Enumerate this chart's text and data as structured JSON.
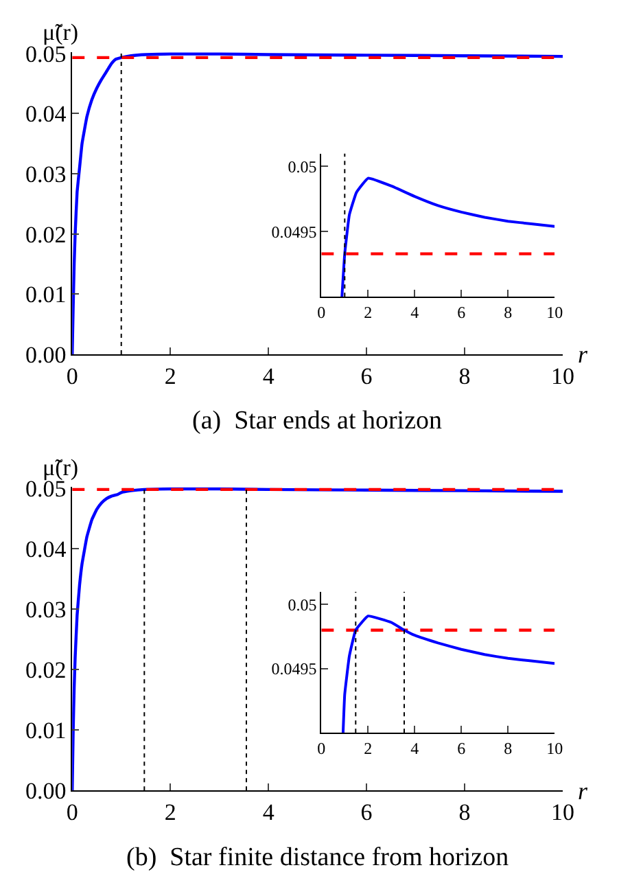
{
  "chart_data": [
    {
      "type": "line",
      "title": "(a)  Star ends at horizon",
      "xlabel": "r",
      "ylabel": "μ̃(r)",
      "xlim": [
        0,
        10
      ],
      "ylim": [
        0,
        0.0502
      ],
      "xticks": [
        0,
        2,
        4,
        6,
        8,
        10
      ],
      "yticks": [
        {
          "value": 0,
          "label": "0.00"
        },
        {
          "value": 0.01,
          "label": "0.01"
        },
        {
          "value": 0.02,
          "label": "0.02"
        },
        {
          "value": 0.03,
          "label": "0.03"
        },
        {
          "value": 0.04,
          "label": "0.04"
        },
        {
          "value": 0.05,
          "label": "0.05"
        }
      ],
      "series": [
        {
          "color": "#0000ff",
          "x": [
            0,
            0.02,
            0.04,
            0.06,
            0.1,
            0.15,
            0.2,
            0.3,
            0.4,
            0.5,
            0.6,
            0.7,
            0.8,
            0.88,
            1.0,
            1.2,
            1.5,
            2,
            3,
            4,
            6,
            8,
            10
          ],
          "values": [
            0,
            0.008,
            0.015,
            0.02,
            0.027,
            0.031,
            0.035,
            0.0395,
            0.0423,
            0.0442,
            0.0457,
            0.047,
            0.0483,
            0.049,
            0.0493,
            0.0496,
            0.0498,
            0.0499,
            0.0499,
            0.0498,
            0.0497,
            0.0496,
            0.0495
          ]
        }
      ],
      "ref_lines": [
        {
          "axis": "y",
          "value": 0.0493,
          "color": "#ff0000",
          "line_style": "dashed"
        },
        {
          "axis": "x",
          "value": 1.0,
          "color": "#000000",
          "line_style": "dotted"
        }
      ]
    },
    {
      "type": "line",
      "xlim": [
        0,
        10
      ],
      "ylim": [
        0.049,
        0.0501
      ],
      "xticks": [
        0,
        2,
        4,
        6,
        8,
        10
      ],
      "yticks": [
        {
          "value": 0.0495,
          "label": "0.0495"
        },
        {
          "value": 0.05,
          "label": "0.05"
        }
      ],
      "series": [
        {
          "color": "#0000ff",
          "x": [
            0.88,
            1.0,
            1.2,
            1.5,
            2,
            3,
            4,
            5,
            6,
            7,
            8,
            9,
            10
          ],
          "values": [
            0.049,
            0.04933,
            0.04963,
            0.0498,
            0.04991,
            0.04985,
            0.04977,
            0.0497,
            0.04965,
            0.04961,
            0.04958,
            0.04956,
            0.04954
          ]
        }
      ],
      "ref_lines": [
        {
          "axis": "y",
          "value": 0.04933,
          "color": "#ff0000",
          "line_style": "dashed"
        },
        {
          "axis": "x",
          "value": 1.0,
          "color": "#000000",
          "line_style": "dotted"
        }
      ]
    },
    {
      "type": "line",
      "title": "(b)  Star finite distance from horizon",
      "xlabel": "r",
      "ylabel": "μ̃(r)",
      "xlim": [
        0,
        10
      ],
      "ylim": [
        0,
        0.0502
      ],
      "xticks": [
        0,
        2,
        4,
        6,
        8,
        10
      ],
      "yticks": [
        {
          "value": 0,
          "label": "0.00"
        },
        {
          "value": 0.01,
          "label": "0.01"
        },
        {
          "value": 0.02,
          "label": "0.02"
        },
        {
          "value": 0.03,
          "label": "0.03"
        },
        {
          "value": 0.04,
          "label": "0.04"
        },
        {
          "value": 0.05,
          "label": "0.05"
        }
      ],
      "series": [
        {
          "color": "#0000ff",
          "x": [
            0,
            0.02,
            0.04,
            0.06,
            0.1,
            0.15,
            0.2,
            0.3,
            0.4,
            0.5,
            0.6,
            0.7,
            0.8,
            0.93,
            1.0,
            1.2,
            1.47,
            2,
            3,
            4,
            6,
            8,
            10
          ],
          "values": [
            0,
            0.01,
            0.017,
            0.022,
            0.029,
            0.034,
            0.0375,
            0.042,
            0.0448,
            0.0465,
            0.0476,
            0.0483,
            0.0487,
            0.049,
            0.0493,
            0.0496,
            0.0498,
            0.0499,
            0.0499,
            0.0498,
            0.0497,
            0.0496,
            0.0495
          ]
        }
      ],
      "ref_lines": [
        {
          "axis": "y",
          "value": 0.0498,
          "color": "#ff0000",
          "line_style": "dashed"
        },
        {
          "axis": "x",
          "value": 1.47,
          "color": "#000000",
          "line_style": "dotted"
        },
        {
          "axis": "x",
          "value": 3.55,
          "color": "#000000",
          "line_style": "dotted"
        }
      ]
    },
    {
      "type": "line",
      "xlim": [
        0,
        10
      ],
      "ylim": [
        0.049,
        0.0501
      ],
      "xticks": [
        0,
        2,
        4,
        6,
        8,
        10
      ],
      "yticks": [
        {
          "value": 0.0495,
          "label": "0.0495"
        },
        {
          "value": 0.05,
          "label": "0.05"
        }
      ],
      "series": [
        {
          "color": "#0000ff",
          "x": [
            0.93,
            1.0,
            1.2,
            1.47,
            2,
            3,
            3.55,
            4,
            5,
            6,
            7,
            8,
            9,
            10
          ],
          "values": [
            0.049,
            0.0493,
            0.0496,
            0.0498,
            0.04991,
            0.04986,
            0.0498,
            0.04976,
            0.0497,
            0.04965,
            0.04961,
            0.04958,
            0.04956,
            0.04954
          ]
        }
      ],
      "ref_lines": [
        {
          "axis": "y",
          "value": 0.0498,
          "color": "#ff0000",
          "line_style": "dashed"
        },
        {
          "axis": "x",
          "value": 1.47,
          "color": "#000000",
          "line_style": "dotted"
        },
        {
          "axis": "x",
          "value": 3.55,
          "color": "#000000",
          "line_style": "dotted"
        }
      ]
    }
  ]
}
